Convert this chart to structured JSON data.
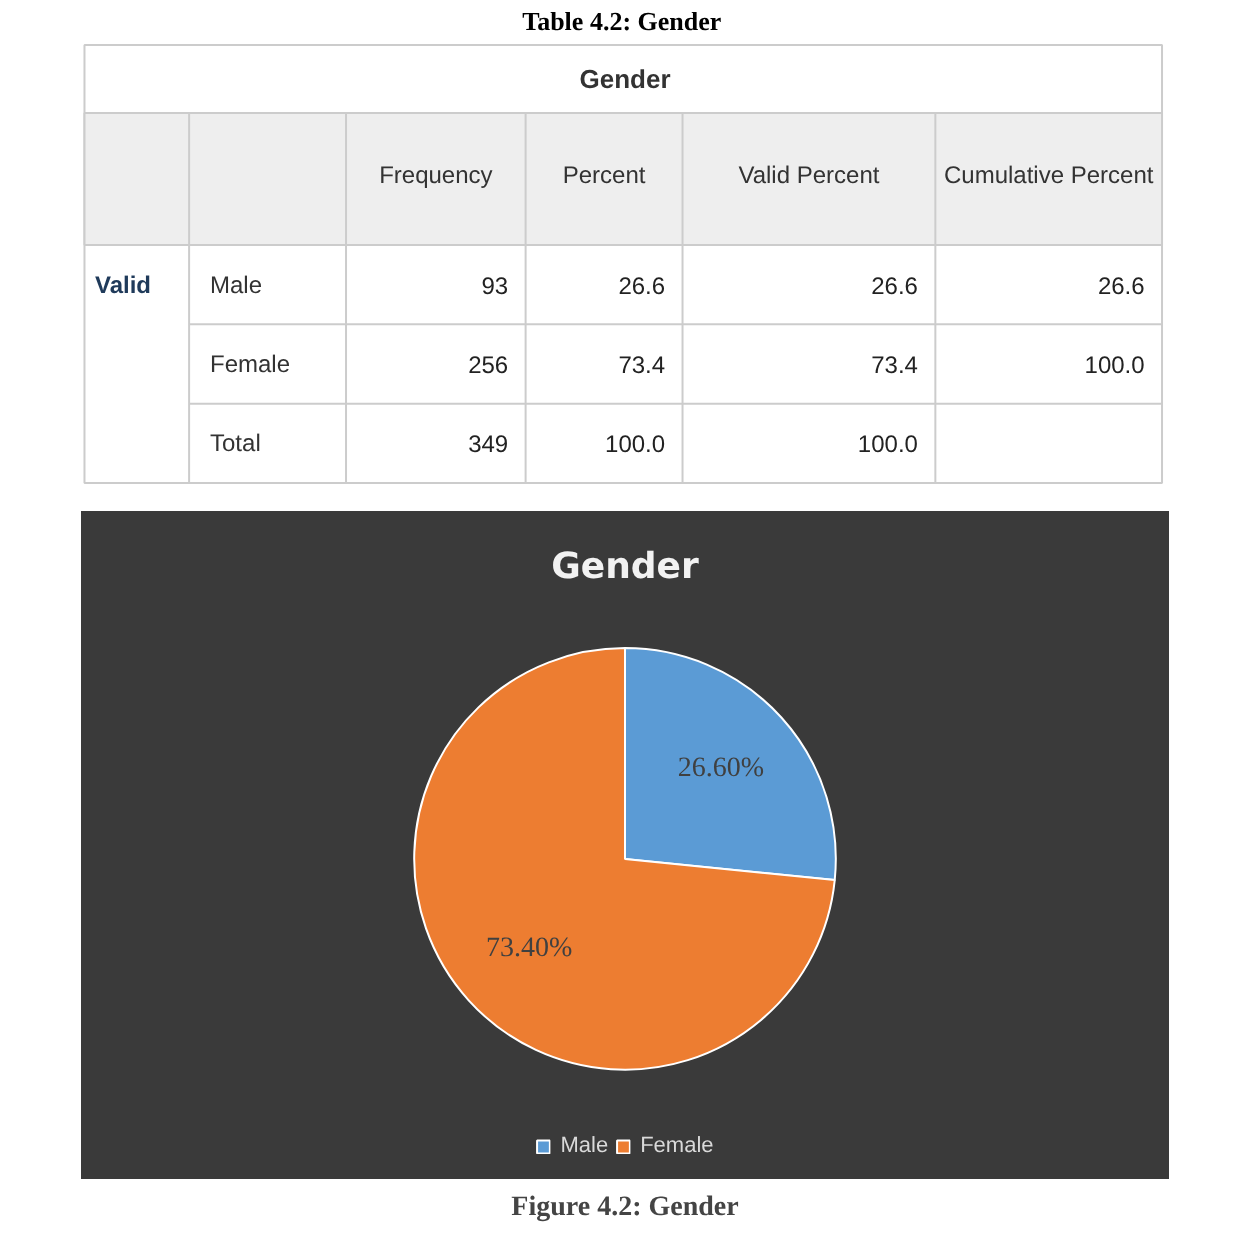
{
  "chart_data": [
    {
      "type": "other",
      "title": "Table 4.2:  Gender",
      "subtitle": "Gender",
      "categories": [
        null,
        null,
        "Frequency",
        "Percent",
        "Valid Percent",
        "Cumulative Percent"
      ],
      "cell_labels": [
        [
          "Valid",
          "Male",
          "93",
          "26.6",
          "26.6",
          "26.6"
        ],
        [
          null,
          "Female",
          "256",
          "73.4",
          "73.4",
          "100.0"
        ],
        [
          null,
          "Total",
          "349",
          "100.0",
          "100.0",
          null
        ]
      ]
    },
    {
      "type": "pie",
      "title": "Gender",
      "categories": [
        "Male",
        "Female"
      ],
      "values": [
        26.6,
        73.4
      ],
      "colors": [
        "#5b9bd5",
        "#ed7d31"
      ],
      "value_labels": [
        "26.60%",
        "73.40%"
      ],
      "legend": "bottom",
      "annotations": [
        "Figure 4.2: Gender"
      ]
    }
  ]
}
